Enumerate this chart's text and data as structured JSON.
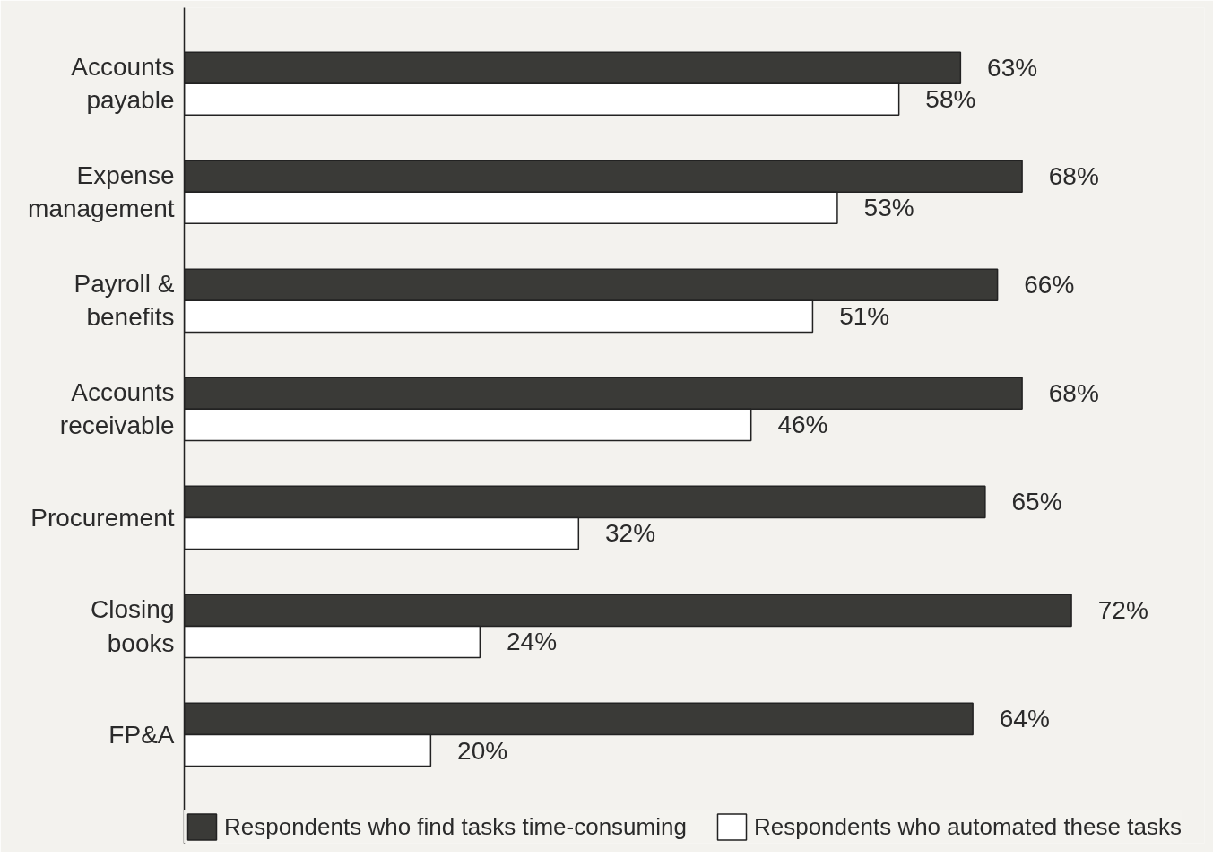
{
  "chart_data": {
    "type": "bar",
    "orientation": "horizontal",
    "categories": [
      "Accounts payable",
      "Expense management",
      "Payroll & benefits",
      "Accounts receivable",
      "Procurement",
      "Closing books",
      "FP&A"
    ],
    "series": [
      {
        "name": "Respondents who find tasks time-consuming",
        "color": "#3a3a37",
        "values": [
          63,
          68,
          66,
          68,
          65,
          72,
          64
        ],
        "value_labels": [
          "63%",
          "68%",
          "66%",
          "68%",
          "65%",
          "72%",
          "64%"
        ]
      },
      {
        "name": "Respondents who automated these tasks",
        "color": "#ffffff",
        "values": [
          58,
          53,
          51,
          46,
          32,
          24,
          20
        ],
        "value_labels": [
          "58%",
          "53%",
          "51%",
          "46%",
          "32%",
          "24%",
          "20%"
        ]
      }
    ],
    "legend": "bottom",
    "grid": false,
    "tick_labels": "y"
  }
}
